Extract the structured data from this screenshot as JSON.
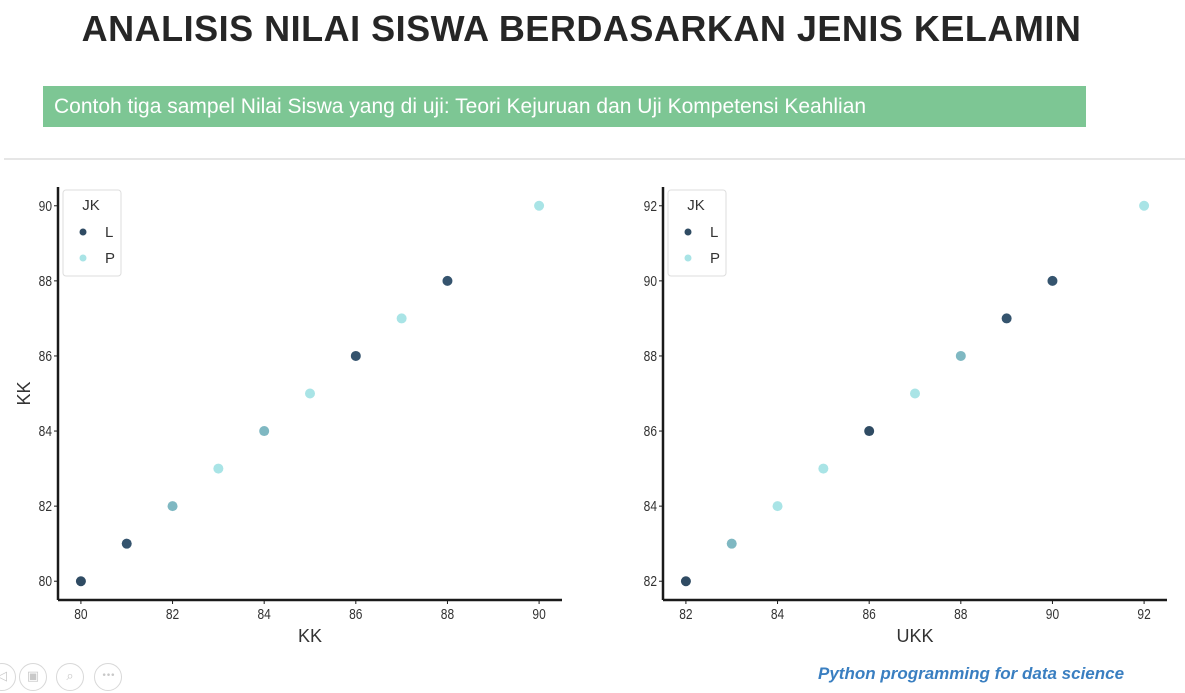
{
  "header": {
    "title": "ANALISIS NILAI SISWA BERDASARKAN JENIS KELAMIN",
    "subtitle": "Contoh tiga sampel Nilai Siswa yang di uji: Teori Kejuruan dan Uji Kompetensi Keahlian"
  },
  "footer": {
    "credit": "Python programming for data science"
  },
  "nav_controls": [
    {
      "icon": "prev-slide-icon",
      "glyph": "◁"
    },
    {
      "icon": "slides-overview-icon",
      "glyph": "▣"
    },
    {
      "icon": "zoom-icon",
      "glyph": "⌕"
    },
    {
      "icon": "more-options-icon",
      "glyph": "•••"
    }
  ],
  "colors": {
    "banner": "#7dc694",
    "series_L": "#2f4b63",
    "series_P": "#a9e4e6",
    "footer_text": "#3a7fc1"
  },
  "chart_data": [
    {
      "type": "scatter",
      "title": "",
      "xlabel": "KK",
      "ylabel": "KK",
      "xlim": [
        79.5,
        90.5
      ],
      "ylim": [
        79.5,
        90.5
      ],
      "xticks": [
        80,
        82,
        84,
        86,
        88,
        90
      ],
      "yticks": [
        80,
        82,
        84,
        86,
        88,
        90
      ],
      "grid": false,
      "legend": {
        "title": "JK",
        "placement": "top-left",
        "entries": [
          "L",
          "P"
        ]
      },
      "hue_levels": [
        {
          "value": 80,
          "color": "#2f4b63"
        },
        {
          "value": 81,
          "color": "#35546e"
        },
        {
          "value": 82,
          "color": "#7fb8c2"
        },
        {
          "value": 83,
          "color": "#a9e4e6"
        },
        {
          "value": 84,
          "color": "#7fb8c2"
        },
        {
          "value": 85,
          "color": "#a9e4e6"
        },
        {
          "value": 86,
          "color": "#35546e"
        },
        {
          "value": 87,
          "color": "#a9e4e6"
        },
        {
          "value": 88,
          "color": "#35546e"
        },
        {
          "value": 90,
          "color": "#a9e4e6"
        }
      ],
      "points": [
        {
          "x": 80,
          "y": 80,
          "group": "L"
        },
        {
          "x": 81,
          "y": 81,
          "group": "L"
        },
        {
          "x": 82,
          "y": 82,
          "group": "P"
        },
        {
          "x": 83,
          "y": 83,
          "group": "P"
        },
        {
          "x": 84,
          "y": 84,
          "group": "P"
        },
        {
          "x": 85,
          "y": 85,
          "group": "P"
        },
        {
          "x": 86,
          "y": 86,
          "group": "L"
        },
        {
          "x": 87,
          "y": 87,
          "group": "P"
        },
        {
          "x": 88,
          "y": 88,
          "group": "L"
        },
        {
          "x": 90,
          "y": 90,
          "group": "P"
        }
      ]
    },
    {
      "type": "scatter",
      "title": "",
      "xlabel": "UKK",
      "ylabel": "",
      "xlim": [
        81.5,
        92.5
      ],
      "ylim": [
        81.5,
        92.5
      ],
      "xticks": [
        82,
        84,
        86,
        88,
        90,
        92
      ],
      "yticks": [
        82,
        84,
        86,
        88,
        90,
        92
      ],
      "grid": false,
      "legend": {
        "title": "JK",
        "placement": "top-left",
        "entries": [
          "L",
          "P"
        ]
      },
      "hue_levels": [
        {
          "value": 82,
          "color": "#2f4b63"
        },
        {
          "value": 83,
          "color": "#7fb8c2"
        },
        {
          "value": 84,
          "color": "#a9e4e6"
        },
        {
          "value": 85,
          "color": "#a9e4e6"
        },
        {
          "value": 86,
          "color": "#2f4b63"
        },
        {
          "value": 87,
          "color": "#a9e4e6"
        },
        {
          "value": 88,
          "color": "#7fb8c2"
        },
        {
          "value": 89,
          "color": "#35546e"
        },
        {
          "value": 90,
          "color": "#35546e"
        },
        {
          "value": 92,
          "color": "#a9e4e6"
        }
      ],
      "points": [
        {
          "x": 82,
          "y": 82,
          "group": "L"
        },
        {
          "x": 83,
          "y": 83,
          "group": "P"
        },
        {
          "x": 84,
          "y": 84,
          "group": "P"
        },
        {
          "x": 85,
          "y": 85,
          "group": "P"
        },
        {
          "x": 86,
          "y": 86,
          "group": "L"
        },
        {
          "x": 87,
          "y": 87,
          "group": "P"
        },
        {
          "x": 88,
          "y": 88,
          "group": "P"
        },
        {
          "x": 89,
          "y": 89,
          "group": "L"
        },
        {
          "x": 90,
          "y": 90,
          "group": "L"
        },
        {
          "x": 92,
          "y": 92,
          "group": "P"
        }
      ]
    }
  ]
}
